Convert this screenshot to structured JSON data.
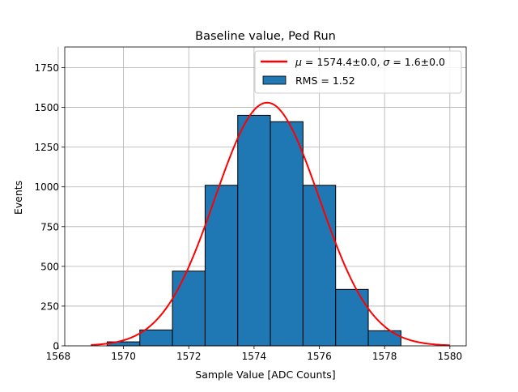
{
  "chart_data": {
    "type": "bar",
    "title": "Baseline value, Ped Run",
    "xlabel": "Sample Value [ADC Counts]",
    "ylabel": "Events",
    "xlim": [
      1568.2,
      1580.5
    ],
    "ylim": [
      0,
      1880
    ],
    "xticks": [
      1568,
      1570,
      1572,
      1574,
      1576,
      1578,
      1580
    ],
    "yticks": [
      0,
      250,
      500,
      750,
      1000,
      1250,
      1500,
      1750
    ],
    "grid": true,
    "legend_position": "top-right",
    "histogram": {
      "name": "RMS = 1.52",
      "color": "#1f77b4",
      "edgecolor": "#000000",
      "bin_edges": [
        1569.5,
        1570.5,
        1571.5,
        1572.5,
        1573.5,
        1574.5,
        1575.5,
        1576.5,
        1577.5,
        1578.5
      ],
      "counts": [
        25,
        100,
        470,
        1010,
        1450,
        1410,
        1010,
        355,
        95
      ]
    },
    "fit": {
      "name": "$\\mu = 1574.4\\pm0.0$, $\\sigma = 1.6\\pm0.0$",
      "type": "gaussian",
      "color": "#ff0000",
      "amplitude": 1530,
      "mu": 1574.4,
      "sigma": 1.6,
      "x_range": [
        1569,
        1580
      ]
    }
  }
}
